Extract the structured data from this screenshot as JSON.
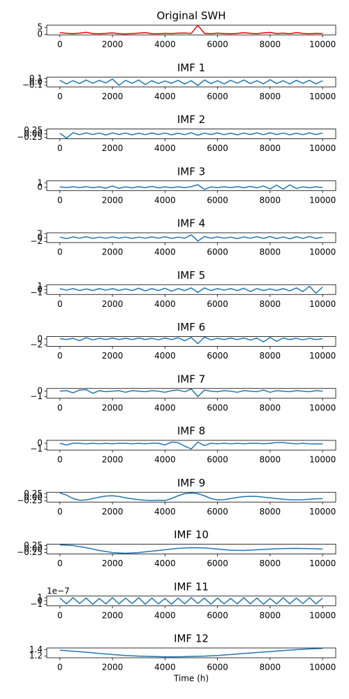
{
  "chart_data": [
    {
      "type": "line",
      "title": "Original SWH",
      "color": "#ff0000",
      "x": [
        0,
        250,
        500,
        750,
        1000,
        1250,
        1500,
        1750,
        2000,
        2250,
        2500,
        2750,
        3000,
        3250,
        3500,
        3750,
        4000,
        4250,
        4500,
        4750,
        5000,
        5250,
        5500,
        5750,
        6000,
        6250,
        6500,
        6750,
        7000,
        7250,
        7500,
        7750,
        8000,
        8250,
        8500,
        8750,
        9000,
        9250,
        9500,
        9750,
        10000
      ],
      "values": [
        1.2,
        0.8,
        0.5,
        0.9,
        1.5,
        0.6,
        0.4,
        0.7,
        1.1,
        0.5,
        0.3,
        0.6,
        0.9,
        1.3,
        0.5,
        0.4,
        0.8,
        0.6,
        0.9,
        1.0,
        0.7,
        6.5,
        0.8,
        0.5,
        0.9,
        0.6,
        0.4,
        0.7,
        1.2,
        0.8,
        0.5,
        1.1,
        1.4,
        0.6,
        0.9,
        0.5,
        1.3,
        0.7,
        0.4,
        0.8,
        0.6
      ],
      "xlim": [
        -500,
        10500
      ],
      "xticks": [
        0,
        2000,
        4000,
        6000,
        8000,
        10000
      ],
      "ylim": [
        -0.4,
        6.6
      ],
      "yticks": [
        0,
        5
      ]
    },
    {
      "type": "line",
      "title": "IMF 1",
      "color": "#1f77b4",
      "x": [
        0,
        250,
        500,
        750,
        1000,
        1250,
        1500,
        1750,
        2000,
        2250,
        2500,
        2750,
        3000,
        3250,
        3500,
        3750,
        4000,
        4250,
        4500,
        4750,
        5000,
        5250,
        5500,
        5750,
        6000,
        6250,
        6500,
        6750,
        7000,
        7250,
        7500,
        7750,
        8000,
        8250,
        8500,
        8750,
        9000,
        9250,
        9500,
        9750,
        10000
      ],
      "values": [
        0.05,
        -0.06,
        0.04,
        -0.05,
        0.06,
        -0.04,
        0.05,
        -0.03,
        0.09,
        -0.1,
        0.05,
        -0.04,
        0.06,
        -0.08,
        0.04,
        -0.05,
        0.03,
        -0.04,
        0.05,
        -0.06,
        0.04,
        -0.11,
        0.06,
        -0.05,
        0.04,
        -0.06,
        0.05,
        -0.04,
        0.06,
        -0.05,
        0.04,
        -0.06,
        0.07,
        -0.05,
        0.04,
        -0.06,
        0.05,
        -0.04,
        0.05,
        -0.06,
        0.04
      ],
      "xlim": [
        -500,
        10500
      ],
      "xticks": [
        0,
        2000,
        4000,
        6000,
        8000,
        10000
      ],
      "ylim": [
        -0.15,
        0.15
      ],
      "yticks": [
        {
          "value": -0.1,
          "label": "−0.1"
        },
        {
          "value": 0,
          "label": "0.0"
        },
        0.1
      ]
    },
    {
      "type": "line",
      "title": "IMF 2",
      "color": "#1f77b4",
      "x": [
        0,
        250,
        500,
        750,
        1000,
        1250,
        1500,
        1750,
        2000,
        2250,
        2500,
        2750,
        3000,
        3250,
        3500,
        3750,
        4000,
        4250,
        4500,
        4750,
        5000,
        5250,
        5500,
        5750,
        6000,
        6250,
        6500,
        6750,
        7000,
        7250,
        7500,
        7750,
        8000,
        8250,
        8500,
        8750,
        9000,
        9250,
        9500,
        9750,
        10000
      ],
      "values": [
        0.05,
        -0.3,
        0.08,
        -0.06,
        0.07,
        -0.05,
        0.06,
        -0.08,
        0.07,
        -0.05,
        0.06,
        -0.07,
        0.05,
        -0.06,
        0.07,
        -0.05,
        0.06,
        -0.07,
        0.05,
        -0.06,
        0.08,
        -0.1,
        0.06,
        -0.05,
        0.07,
        -0.06,
        0.05,
        -0.07,
        0.06,
        -0.05,
        0.07,
        -0.06,
        0.08,
        -0.05,
        0.06,
        -0.07,
        0.05,
        -0.06,
        0.07,
        -0.05,
        0.06
      ],
      "xlim": [
        -500,
        10500
      ],
      "xticks": [
        0,
        2000,
        4000,
        6000,
        8000,
        10000
      ],
      "ylim": [
        -0.35,
        0.35
      ],
      "yticks": [
        {
          "value": -0.25,
          "label": "−0.25"
        },
        {
          "value": 0,
          "label": "0.00"
        },
        0.25
      ]
    },
    {
      "type": "line",
      "title": "IMF 3",
      "color": "#1f77b4",
      "x": [
        0,
        250,
        500,
        750,
        1000,
        1250,
        1500,
        1750,
        2000,
        2250,
        2500,
        2750,
        3000,
        3250,
        3500,
        3750,
        4000,
        4250,
        4500,
        4750,
        5000,
        5250,
        5500,
        5750,
        6000,
        6250,
        6500,
        6750,
        7000,
        7250,
        7500,
        7750,
        8000,
        8250,
        8500,
        8750,
        9000,
        9250,
        9500,
        9750,
        10000
      ],
      "values": [
        0.1,
        -0.1,
        0.12,
        -0.1,
        0.15,
        -0.12,
        0.1,
        -0.2,
        0.3,
        -0.25,
        0.1,
        -0.15,
        0.12,
        -0.1,
        0.2,
        -0.15,
        0.1,
        -0.12,
        0.1,
        -0.1,
        0.15,
        0.6,
        -0.5,
        0.1,
        -0.1,
        0.12,
        -0.1,
        0.15,
        -0.12,
        0.2,
        -0.15,
        0.3,
        -0.4,
        0.5,
        -0.45,
        0.55,
        -0.3,
        0.1,
        -0.12,
        0.1,
        -0.1
      ],
      "xlim": [
        -500,
        10500
      ],
      "xticks": [
        0,
        2000,
        4000,
        6000,
        8000,
        10000
      ],
      "ylim": [
        -0.8,
        1.5
      ],
      "yticks": [
        0,
        1
      ]
    },
    {
      "type": "line",
      "title": "IMF 4",
      "color": "#1f77b4",
      "x": [
        0,
        250,
        500,
        750,
        1000,
        1250,
        1500,
        1750,
        2000,
        2250,
        2500,
        2750,
        3000,
        3250,
        3500,
        3750,
        4000,
        4250,
        4500,
        4750,
        5000,
        5250,
        5500,
        5750,
        6000,
        6250,
        6500,
        6750,
        7000,
        7250,
        7500,
        7750,
        8000,
        8250,
        8500,
        8750,
        9000,
        9250,
        9500,
        9750,
        10000
      ],
      "values": [
        0.3,
        -0.5,
        0.4,
        -0.3,
        0.5,
        -0.4,
        0.3,
        -0.3,
        0.4,
        -0.3,
        0.3,
        -0.4,
        0.3,
        -0.3,
        0.4,
        -0.3,
        0.5,
        -0.4,
        0.3,
        -0.3,
        1.5,
        -1.8,
        0.6,
        -0.3,
        0.4,
        -0.3,
        0.3,
        -0.5,
        0.4,
        -0.3,
        0.5,
        -0.4,
        0.6,
        -0.5,
        0.4,
        -0.6,
        0.5,
        -0.4,
        0.6,
        -0.4,
        0.3
      ],
      "xlim": [
        -500,
        10500
      ],
      "xticks": [
        0,
        2000,
        4000,
        6000,
        8000,
        10000
      ],
      "ylim": [
        -2.6,
        2.6
      ],
      "yticks": [
        {
          "value": -2,
          "label": "−2"
        },
        0,
        2
      ]
    },
    {
      "type": "line",
      "title": "IMF 5",
      "color": "#1f77b4",
      "x": [
        0,
        250,
        500,
        750,
        1000,
        1250,
        1500,
        1750,
        2000,
        2250,
        2500,
        2750,
        3000,
        3250,
        3500,
        3750,
        4000,
        4250,
        4500,
        4750,
        5000,
        5250,
        5500,
        5750,
        6000,
        6250,
        6500,
        6750,
        7000,
        7250,
        7500,
        7750,
        8000,
        8250,
        8500,
        8750,
        9000,
        9250,
        9500,
        9750,
        10000
      ],
      "values": [
        0.3,
        -0.2,
        0.3,
        -0.3,
        0.2,
        -0.3,
        0.3,
        -0.2,
        0.3,
        -0.3,
        0.2,
        -0.3,
        0.4,
        -0.4,
        0.3,
        -0.3,
        0.4,
        -0.5,
        0.3,
        -0.3,
        0.5,
        -0.9,
        0.5,
        -0.3,
        0.3,
        -0.2,
        0.3,
        -0.3,
        0.4,
        -0.6,
        0.3,
        -0.3,
        0.2,
        -0.3,
        0.3,
        -0.4,
        0.5,
        -0.6,
        1.0,
        -1.1,
        0.8
      ],
      "xlim": [
        -500,
        10500
      ],
      "xticks": [
        0,
        2000,
        4000,
        6000,
        8000,
        10000
      ],
      "ylim": [
        -1.5,
        1.5
      ],
      "yticks": [
        {
          "value": -1,
          "label": "−1"
        },
        0,
        1
      ]
    },
    {
      "type": "line",
      "title": "IMF 6",
      "color": "#1f77b4",
      "x": [
        0,
        250,
        500,
        750,
        1000,
        1250,
        1500,
        1750,
        2000,
        2250,
        2500,
        2750,
        3000,
        3250,
        3500,
        3750,
        4000,
        4250,
        4500,
        4750,
        5000,
        5250,
        5500,
        5750,
        6000,
        6250,
        6500,
        6750,
        7000,
        7250,
        7500,
        7750,
        8000,
        8250,
        8500,
        8750,
        9000,
        9250,
        9500,
        9750,
        10000
      ],
      "values": [
        0.1,
        -0.2,
        0.2,
        -0.6,
        0.4,
        -0.3,
        0.2,
        -0.2,
        0.3,
        -0.2,
        0.2,
        -0.2,
        0.3,
        -0.2,
        0.2,
        -0.3,
        0.3,
        -0.2,
        0.4,
        -0.6,
        0.5,
        -1.6,
        0.6,
        -0.3,
        0.2,
        -0.2,
        0.3,
        -0.2,
        0.3,
        -0.4,
        0.3,
        -1.0,
        0.5,
        -0.8,
        0.3,
        -0.2,
        0.2,
        -0.3,
        0.2,
        -0.2,
        0.1
      ],
      "xlim": [
        -500,
        10500
      ],
      "xticks": [
        0,
        2000,
        4000,
        6000,
        8000,
        10000
      ],
      "ylim": [
        -2.5,
        0.8
      ],
      "yticks": [
        {
          "value": -2,
          "label": "−2"
        },
        0
      ]
    },
    {
      "type": "line",
      "title": "IMF 7",
      "color": "#1f77b4",
      "x": [
        0,
        250,
        500,
        750,
        1000,
        1250,
        1500,
        1750,
        2000,
        2250,
        2500,
        2750,
        3000,
        3250,
        3500,
        3750,
        4000,
        4250,
        4500,
        4750,
        5000,
        5250,
        5500,
        5750,
        6000,
        6250,
        6500,
        6750,
        7000,
        7250,
        7500,
        7750,
        8000,
        8250,
        8500,
        8750,
        9000,
        9250,
        9500,
        9750,
        10000
      ],
      "values": [
        0,
        0.1,
        -0.3,
        0.2,
        0.3,
        -0.4,
        0.1,
        -0.1,
        0,
        0.1,
        -0.2,
        0.1,
        0,
        -0.1,
        0.1,
        0,
        -0.2,
        0.1,
        0.2,
        -0.1,
        0.4,
        -1.0,
        0.2,
        0,
        -0.1,
        0.1,
        0,
        -0.2,
        0.1,
        0,
        -0.1,
        0.2,
        -0.2,
        0.1,
        0,
        -0.1,
        0.1,
        0,
        -0.1,
        0.1,
        0
      ],
      "xlim": [
        -500,
        10500
      ],
      "xticks": [
        0,
        2000,
        4000,
        6000,
        8000,
        10000
      ],
      "ylim": [
        -1.3,
        0.5
      ],
      "yticks": [
        {
          "value": -1,
          "label": "−1"
        },
        0
      ]
    },
    {
      "type": "line",
      "title": "IMF 8",
      "color": "#1f77b4",
      "x": [
        0,
        250,
        500,
        750,
        1000,
        1250,
        1500,
        1750,
        2000,
        2250,
        2500,
        2750,
        3000,
        3250,
        3500,
        3750,
        4000,
        4250,
        4500,
        4750,
        5000,
        5250,
        5500,
        5750,
        6000,
        6250,
        6500,
        6750,
        7000,
        7250,
        7500,
        7750,
        8000,
        8250,
        8500,
        8750,
        9000,
        9250,
        9500,
        9750,
        10000
      ],
      "values": [
        0,
        -0.3,
        0,
        0,
        -0.1,
        0,
        -0.1,
        0,
        -0.1,
        0,
        0,
        -0.1,
        0,
        -0.1,
        0,
        0,
        -0.3,
        0.2,
        0.1,
        -0.5,
        -1.0,
        0.2,
        -0.4,
        0,
        -0.1,
        0,
        -0.1,
        0,
        -0.1,
        0,
        0,
        -0.1,
        0,
        0.1,
        0.1,
        0,
        -0.1,
        0,
        -0.1,
        -0.1,
        -0.1
      ],
      "xlim": [
        -500,
        10500
      ],
      "xticks": [
        0,
        2000,
        4000,
        6000,
        8000,
        10000
      ],
      "ylim": [
        -1.2,
        0.5
      ],
      "yticks": [
        {
          "value": -1,
          "label": "−1"
        },
        0
      ]
    },
    {
      "type": "line",
      "title": "IMF 9",
      "color": "#1f77b4",
      "x": [
        0,
        250,
        500,
        750,
        1000,
        1250,
        1500,
        1750,
        2000,
        2250,
        2500,
        2750,
        3000,
        3250,
        3500,
        3750,
        4000,
        4250,
        4500,
        4750,
        5000,
        5250,
        5500,
        5750,
        6000,
        6250,
        6500,
        6750,
        7000,
        7250,
        7500,
        7750,
        8000,
        8250,
        8500,
        8750,
        9000,
        9250,
        9500,
        9750,
        10000
      ],
      "values": [
        0.3,
        0.15,
        -0.1,
        -0.22,
        -0.2,
        -0.1,
        0,
        0.08,
        0.1,
        0.05,
        -0.05,
        -0.12,
        -0.18,
        -0.22,
        -0.24,
        -0.22,
        -0.24,
        -0.1,
        0.1,
        0.25,
        0.3,
        0.25,
        0.1,
        -0.1,
        -0.2,
        -0.18,
        -0.1,
        -0.02,
        0.04,
        0.06,
        0.05,
        0,
        -0.05,
        -0.1,
        -0.15,
        -0.18,
        -0.19,
        -0.18,
        -0.15,
        -0.12,
        -0.1
      ],
      "xlim": [
        -500,
        10500
      ],
      "xticks": [
        0,
        2000,
        4000,
        6000,
        8000,
        10000
      ],
      "ylim": [
        -0.35,
        0.35
      ],
      "yticks": [
        {
          "value": -0.25,
          "label": "−0.25"
        },
        {
          "value": 0,
          "label": "0.00"
        },
        0.25
      ]
    },
    {
      "type": "line",
      "title": "IMF 10",
      "color": "#1f77b4",
      "x": [
        0,
        500,
        1000,
        1500,
        2000,
        2500,
        3000,
        3500,
        4000,
        4500,
        5000,
        5500,
        6000,
        6500,
        7000,
        7500,
        8000,
        8500,
        9000,
        9500,
        10000
      ],
      "values": [
        0.3,
        0.25,
        0.1,
        -0.1,
        -0.25,
        -0.3,
        -0.25,
        -0.15,
        -0.05,
        0.05,
        0.1,
        0.08,
        0,
        -0.08,
        -0.1,
        -0.05,
        0,
        0.04,
        0.05,
        0.03,
        0
      ],
      "xlim": [
        -500,
        10500
      ],
      "xticks": [
        0,
        2000,
        4000,
        6000,
        8000,
        10000
      ],
      "ylim": [
        -0.35,
        0.35
      ],
      "yticks": [
        {
          "value": -0.25,
          "label": "−0.25"
        },
        {
          "value": 0,
          "label": "0.00"
        },
        0.25
      ]
    },
    {
      "type": "line",
      "title": "IMF 11",
      "offset_text": "1e−7",
      "color": "#1f77b4",
      "x": [
        0,
        250,
        500,
        750,
        1000,
        1250,
        1500,
        1750,
        2000,
        2250,
        2500,
        2750,
        3000,
        3250,
        3500,
        3750,
        4000,
        4250,
        4500,
        4750,
        5000,
        5250,
        5500,
        5750,
        6000,
        6250,
        6500,
        6750,
        7000,
        7250,
        7500,
        7750,
        8000,
        8250,
        8500,
        8750,
        9000,
        9250,
        9500,
        9750,
        10000
      ],
      "values": [
        0.9,
        -0.9,
        1.0,
        -0.8,
        0.9,
        -1.0,
        0.8,
        -0.9,
        1.0,
        -0.9,
        0.9,
        -0.8,
        1.0,
        -1.0,
        0.9,
        -0.9,
        0.8,
        -1.0,
        0.9,
        -0.9,
        1.0,
        -0.8,
        0.9,
        -1.0,
        0.9,
        -0.9,
        0.8,
        -0.9,
        1.0,
        -0.9,
        0.9,
        -1.0,
        0.8,
        -0.9,
        1.0,
        -0.9,
        0.9,
        -0.8,
        1.0,
        -0.9,
        0.9
      ],
      "xlim": [
        -500,
        10500
      ],
      "xticks": [
        0,
        2000,
        4000,
        6000,
        8000,
        10000
      ],
      "ylim": [
        -1.5,
        1.5
      ],
      "yticks": [
        {
          "value": -1,
          "label": "−1"
        },
        0,
        1
      ]
    },
    {
      "type": "line",
      "title": "IMF 12",
      "xlabel": "Time (h)",
      "color": "#1f77b4",
      "x": [
        0,
        500,
        1000,
        1500,
        2000,
        2500,
        3000,
        3500,
        4000,
        4500,
        5000,
        5500,
        6000,
        6500,
        7000,
        7500,
        8000,
        8500,
        9000,
        9500,
        10000
      ],
      "values": [
        1.38,
        1.35,
        1.32,
        1.28,
        1.25,
        1.22,
        1.2,
        1.19,
        1.18,
        1.18,
        1.19,
        1.2,
        1.22,
        1.25,
        1.28,
        1.31,
        1.34,
        1.37,
        1.4,
        1.42,
        1.44
      ],
      "xlim": [
        -500,
        10500
      ],
      "xticks": [
        0,
        2000,
        4000,
        6000,
        8000,
        10000
      ],
      "ylim": [
        1.15,
        1.45
      ],
      "yticks": [
        1.2,
        1.4
      ]
    }
  ]
}
